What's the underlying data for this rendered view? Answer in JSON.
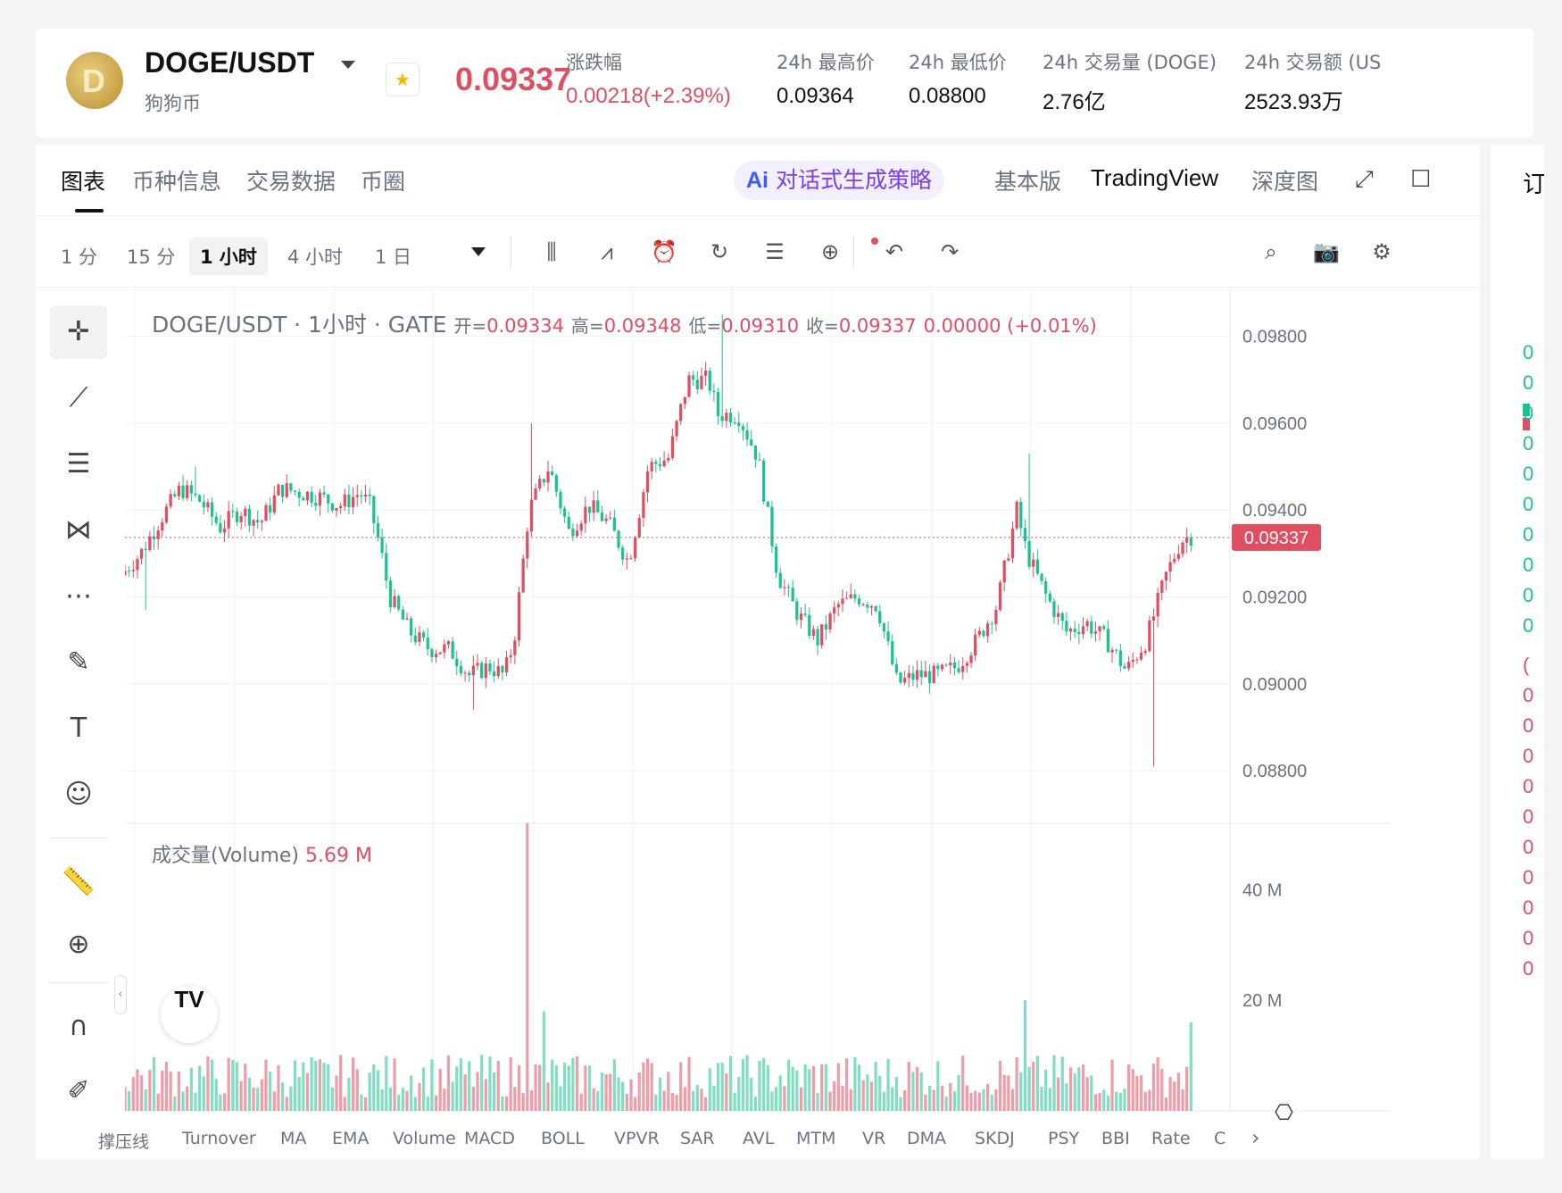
{
  "header": {
    "pair": "DOGE/USDT",
    "coin_name": "狗狗币",
    "last_price": "0.09337",
    "stats": [
      {
        "label": "涨跌幅",
        "value": "0.00218(+2.39%)",
        "red": true
      },
      {
        "label": "24h 最高价",
        "value": "0.09364",
        "red": false
      },
      {
        "label": "24h 最低价",
        "value": "0.08800",
        "red": false
      },
      {
        "label": "24h 交易量 (DOGE)",
        "value": "2.76亿",
        "red": false
      },
      {
        "label": "24h 交易额 (US",
        "value": "2523.93万",
        "red": false
      }
    ]
  },
  "tabs": [
    "图表",
    "币种信息",
    "交易数据",
    "币圈"
  ],
  "ai_button": {
    "prefix": "Ai",
    "label": "对话式生成策略"
  },
  "modes": [
    "基本版",
    "TradingView",
    "深度图"
  ],
  "timeframes": [
    "1 分",
    "15 分",
    "1 小时",
    "4 小时",
    "1 日"
  ],
  "active_timeframe": "1 小时",
  "legend": {
    "title": "DOGE/USDT · 1小时 · GATE",
    "open_label": "开",
    "open": "0.09334",
    "high_label": "高",
    "high": "0.09348",
    "low_label": "低",
    "low": "0.09310",
    "close_label": "收",
    "close": "0.09337",
    "change": "0.00000 (+0.01%)"
  },
  "volume_legend": {
    "label": "成交量(Volume)",
    "value": "5.69 M"
  },
  "indicators": [
    "撑压线",
    "Turnover",
    "MA",
    "EMA",
    "Volume",
    "MACD",
    "BOLL",
    "VPVR",
    "SAR",
    "AVL",
    "MTM",
    "VR",
    "DMA",
    "SKDJ",
    "PSY",
    "BBI",
    "Rate",
    "C"
  ],
  "right_panel": {
    "heading": "订",
    "rows": [
      "0",
      "0",
      "0",
      "0",
      "0",
      "0",
      "0",
      "0",
      "0",
      "0",
      "(",
      "0",
      "0",
      "0",
      "0",
      "0",
      "0",
      "0",
      "0",
      "0",
      "0"
    ]
  },
  "colors": {
    "up": "#e04e61",
    "down": "#1bc292",
    "grid": "#f0f1f3",
    "axis_text": "#6b7280"
  },
  "chart_data": {
    "type": "candlestick",
    "interval": "1小时",
    "price_axis": {
      "ticks": [
        "0.09800",
        "0.09600",
        "0.09400",
        "0.09200",
        "0.09000",
        "0.08800"
      ],
      "range": [
        0.0872,
        0.0983
      ]
    },
    "current_price_label": "0.09337",
    "volume_axis": {
      "ticks": [
        "40 M",
        "20 M"
      ],
      "max": 52
    },
    "x_ticks": [
      "20",
      "21",
      "22",
      "23",
      "24",
      "25",
      "26",
      "27",
      "28",
      "29",
      "30",
      "31"
    ],
    "x_range": [
      19.9,
      31.0
    ],
    "close_path": [
      [
        19.9,
        0.0925
      ],
      [
        20.1,
        0.093
      ],
      [
        20.3,
        0.0938
      ],
      [
        20.5,
        0.0945
      ],
      [
        20.7,
        0.0942
      ],
      [
        20.9,
        0.0936
      ],
      [
        21.1,
        0.094
      ],
      [
        21.3,
        0.0937
      ],
      [
        21.5,
        0.0945
      ],
      [
        21.7,
        0.0944
      ],
      [
        21.9,
        0.0943
      ],
      [
        22.1,
        0.0941
      ],
      [
        22.3,
        0.0944
      ],
      [
        22.4,
        0.0941
      ],
      [
        22.5,
        0.0932
      ],
      [
        22.6,
        0.092
      ],
      [
        22.8,
        0.0912
      ],
      [
        23.0,
        0.0908
      ],
      [
        23.2,
        0.0908
      ],
      [
        23.4,
        0.0902
      ],
      [
        23.6,
        0.0904
      ],
      [
        23.75,
        0.0902
      ],
      [
        23.85,
        0.091
      ],
      [
        24.0,
        0.094
      ],
      [
        24.2,
        0.095
      ],
      [
        24.4,
        0.0935
      ],
      [
        24.6,
        0.0941
      ],
      [
        24.8,
        0.0937
      ],
      [
        25.0,
        0.0928
      ],
      [
        25.2,
        0.095
      ],
      [
        25.4,
        0.0952
      ],
      [
        25.6,
        0.097
      ],
      [
        25.8,
        0.097
      ],
      [
        25.9,
        0.0962
      ],
      [
        26.1,
        0.0962
      ],
      [
        26.3,
        0.0952
      ],
      [
        26.5,
        0.0925
      ],
      [
        26.7,
        0.0916
      ],
      [
        26.9,
        0.091
      ],
      [
        27.1,
        0.0918
      ],
      [
        27.3,
        0.092
      ],
      [
        27.5,
        0.0918
      ],
      [
        27.7,
        0.09
      ],
      [
        27.9,
        0.0902
      ],
      [
        28.1,
        0.0902
      ],
      [
        28.3,
        0.0904
      ],
      [
        28.5,
        0.091
      ],
      [
        28.7,
        0.0918
      ],
      [
        28.9,
        0.094
      ],
      [
        29.0,
        0.093
      ],
      [
        29.2,
        0.092
      ],
      [
        29.4,
        0.0912
      ],
      [
        29.6,
        0.0914
      ],
      [
        29.8,
        0.091
      ],
      [
        30.0,
        0.0903
      ],
      [
        30.2,
        0.091
      ],
      [
        30.4,
        0.0925
      ],
      [
        30.55,
        0.0933
      ],
      [
        30.65,
        0.0934
      ]
    ],
    "wicks": [
      [
        20.6,
        0.095
      ],
      [
        24.0,
        0.096
      ],
      [
        25.9,
        0.0985
      ],
      [
        29.0,
        0.0953
      ],
      [
        30.25,
        0.0881
      ],
      [
        23.4,
        0.0894
      ],
      [
        20.1,
        0.0917
      ]
    ],
    "volume_spikes": [
      [
        23.95,
        52
      ],
      [
        28.93,
        20
      ],
      [
        24.1,
        18
      ],
      [
        30.6,
        16
      ]
    ],
    "volume_baseline": 6
  }
}
